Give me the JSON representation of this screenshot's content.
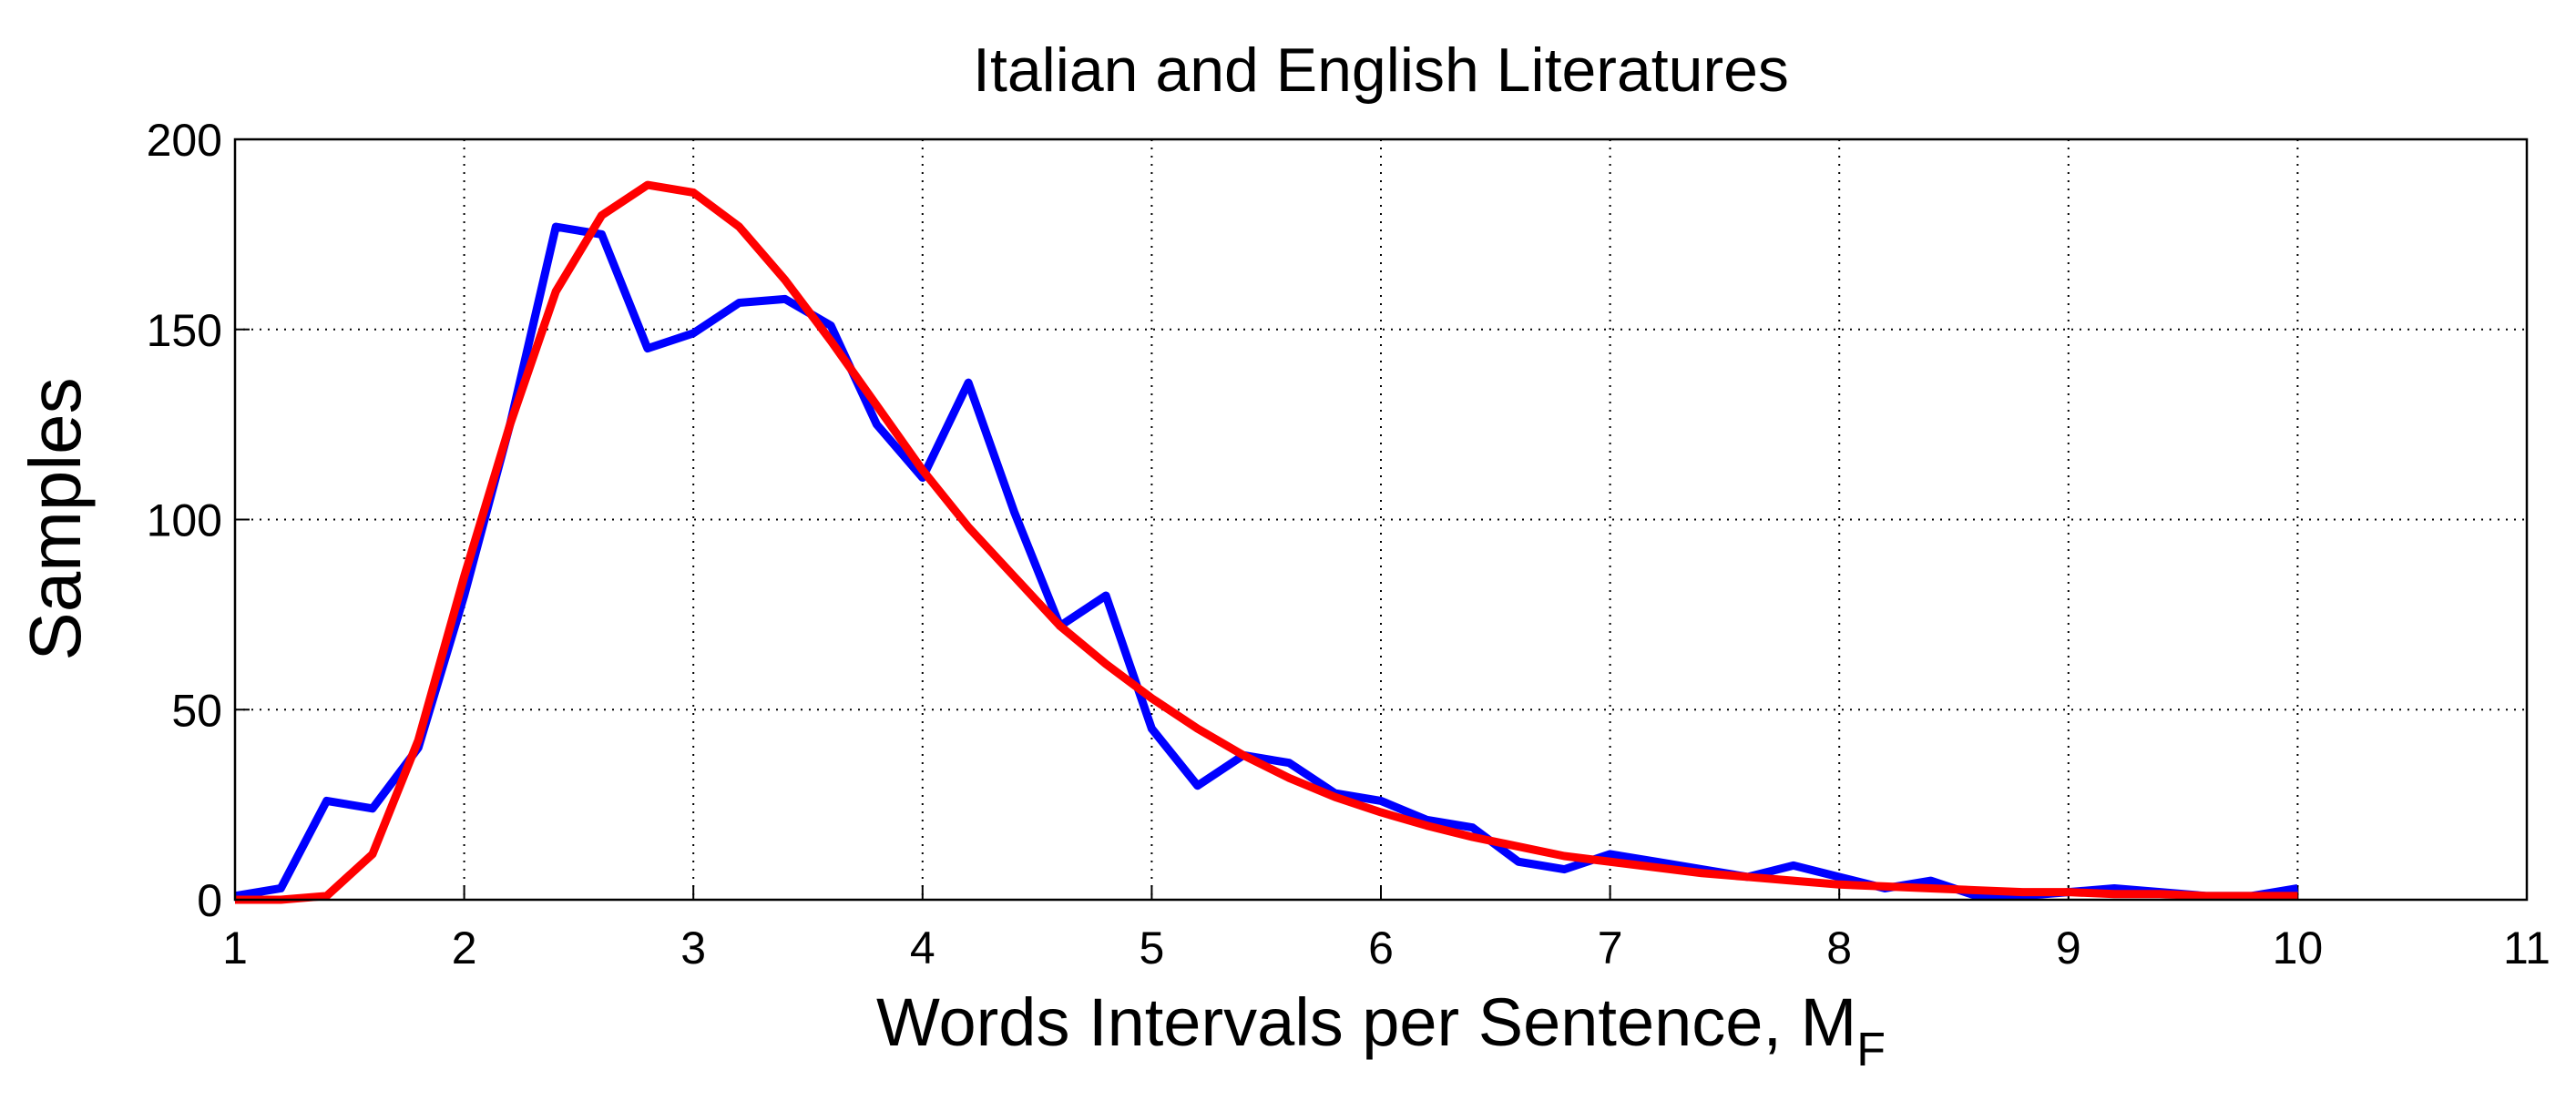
{
  "chart_data": {
    "type": "line",
    "title": "Italian and English Literatures",
    "xlabel": "Words Intervals per Sentence, M",
    "xlabel_subscript": "F",
    "ylabel": "Samples",
    "x": [
      1,
      1.2,
      1.4,
      1.6,
      1.8,
      2,
      2.2,
      2.4,
      2.6,
      2.8,
      3,
      3.2,
      3.4,
      3.6,
      3.8,
      4,
      4.2,
      4.4,
      4.6,
      4.8,
      5,
      5.2,
      5.4,
      5.6,
      5.8,
      6,
      6.2,
      6.4,
      6.6,
      6.8,
      7,
      7.2,
      7.4,
      7.6,
      7.8,
      8,
      8.2,
      8.4,
      8.6,
      8.8,
      9,
      9.2,
      9.4,
      9.6,
      9.8,
      10
    ],
    "series": [
      {
        "color": "#0000ff",
        "values": [
          1,
          3,
          26,
          24,
          40,
          80,
          125,
          177,
          175,
          145,
          149,
          157,
          158,
          151,
          125,
          111,
          136,
          102,
          72,
          80,
          45,
          30,
          38,
          36,
          28,
          26,
          21,
          19,
          10,
          8,
          12,
          10,
          8,
          6,
          9,
          6,
          3,
          5,
          1,
          1,
          2,
          3,
          2,
          1,
          1,
          3
        ]
      },
      {
        "color": "#ff0000",
        "values": [
          0,
          0,
          1,
          12,
          42,
          85,
          125,
          160,
          180,
          188,
          186,
          177,
          163,
          147,
          130,
          113,
          98,
          85,
          72,
          62,
          53,
          45,
          38,
          32,
          27,
          23,
          19.5,
          16.5,
          14,
          11.5,
          10,
          8.5,
          7,
          6,
          5,
          4,
          3.5,
          3,
          2.5,
          2,
          2,
          1.5,
          1.5,
          1,
          1,
          1
        ]
      }
    ],
    "xlim": [
      1,
      11
    ],
    "xticks": [
      1,
      2,
      3,
      4,
      5,
      6,
      7,
      8,
      9,
      10,
      11
    ],
    "ylim": [
      0,
      200
    ],
    "yticks": [
      0,
      50,
      100,
      150,
      200
    ],
    "grid": true
  }
}
